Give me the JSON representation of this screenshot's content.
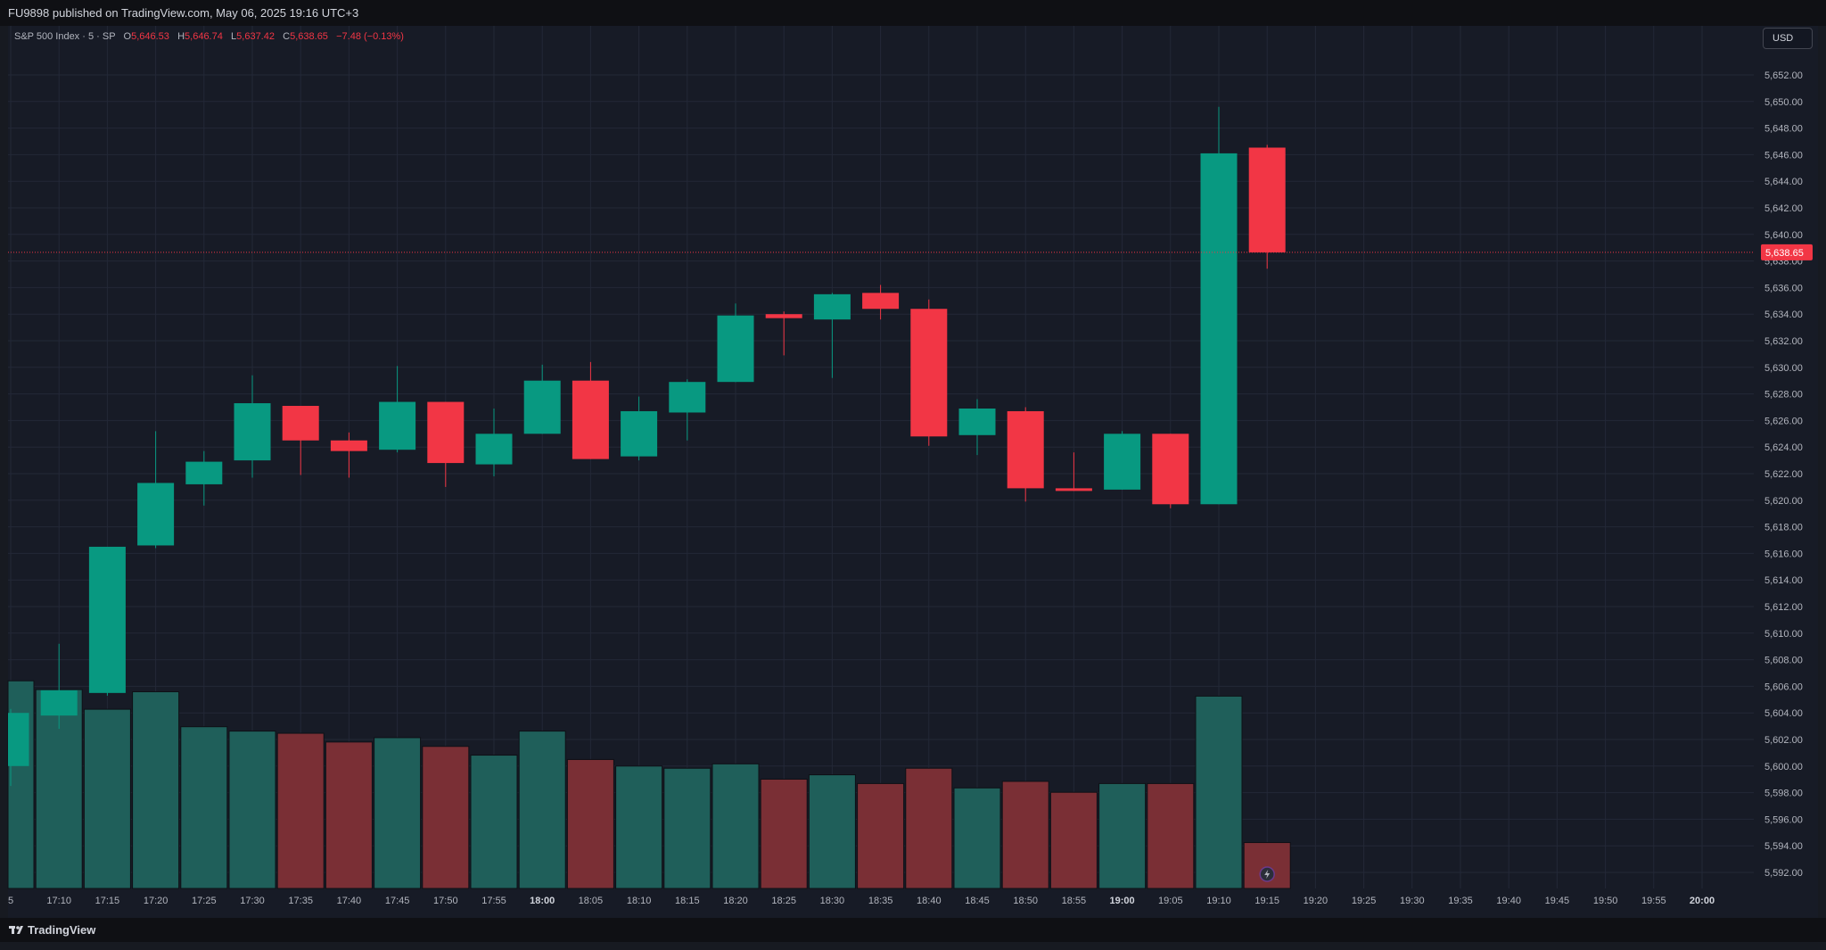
{
  "header": {
    "published": "FU9898 published on TradingView.com, May 06, 2025 19:16 UTC+3"
  },
  "legend": {
    "symbol": "S&P 500 Index · 5 · SP",
    "o_label": "O",
    "o_value": "5,646.53",
    "h_label": "H",
    "h_value": "5,646.74",
    "l_label": "L",
    "l_value": "5,637.42",
    "c_label": "C",
    "c_value": "5,638.65",
    "change": "−7.48 (−0.13%)"
  },
  "currency_button": "USD",
  "footer": {
    "brand": "TradingView"
  },
  "colors": {
    "up": "#089981",
    "down": "#f23645",
    "vol_up": "#1f5f5a",
    "vol_down": "#7a2f35",
    "grid": "#232837",
    "last_price": "#f23645"
  },
  "icons": {
    "logo": "tradingview-logo-icon",
    "replay": "lightning-icon"
  },
  "chart_data": {
    "type": "candlestick",
    "symbol": "S&P 500 Index",
    "interval": "5",
    "currency": "USD",
    "last_price": 5638.65,
    "last_price_label": "5,638.65",
    "ylim": [
      5591,
      5653.5
    ],
    "y_ticks": [
      "5,592.00",
      "5,594.00",
      "5,596.00",
      "5,598.00",
      "5,600.00",
      "5,602.00",
      "5,604.00",
      "5,606.00",
      "5,608.00",
      "5,610.00",
      "5,612.00",
      "5,614.00",
      "5,616.00",
      "5,618.00",
      "5,620.00",
      "5,622.00",
      "5,624.00",
      "5,626.00",
      "5,628.00",
      "5,630.00",
      "5,632.00",
      "5,634.00",
      "5,636.00",
      "5,638.00",
      "5,640.00",
      "5,642.00",
      "5,644.00",
      "5,646.00",
      "5,648.00",
      "5,650.00",
      "5,652.00"
    ],
    "x_ticks": [
      "5",
      "17:10",
      "17:15",
      "17:20",
      "17:25",
      "17:30",
      "17:35",
      "17:40",
      "17:45",
      "17:50",
      "17:55",
      "18:00",
      "18:05",
      "18:10",
      "18:15",
      "18:20",
      "18:25",
      "18:30",
      "18:35",
      "18:40",
      "18:45",
      "18:50",
      "18:55",
      "19:00",
      "19:05",
      "19:10",
      "19:15",
      "19:20",
      "19:25",
      "19:30",
      "19:35",
      "19:40",
      "19:45",
      "19:50",
      "19:55",
      "20:00"
    ],
    "x_ticks_bold": [
      "18:00",
      "19:00",
      "20:00"
    ],
    "candles": [
      {
        "time": "17:05",
        "open": 5600.0,
        "high": 5604.3,
        "low": 5598.5,
        "close": 5604.0
      },
      {
        "time": "17:10",
        "open": 5603.8,
        "high": 5609.2,
        "low": 5602.8,
        "close": 5605.7
      },
      {
        "time": "17:15",
        "open": 5605.5,
        "high": 5616.5,
        "low": 5605.3,
        "close": 5616.5
      },
      {
        "time": "17:20",
        "open": 5616.6,
        "high": 5625.2,
        "low": 5616.4,
        "close": 5621.3
      },
      {
        "time": "17:25",
        "open": 5621.2,
        "high": 5623.7,
        "low": 5619.6,
        "close": 5622.9
      },
      {
        "time": "17:30",
        "open": 5623.0,
        "high": 5629.4,
        "low": 5621.7,
        "close": 5627.3
      },
      {
        "time": "17:35",
        "open": 5627.1,
        "high": 5627.1,
        "low": 5621.9,
        "close": 5624.5
      },
      {
        "time": "17:40",
        "open": 5624.5,
        "high": 5625.1,
        "low": 5621.7,
        "close": 5623.7
      },
      {
        "time": "17:45",
        "open": 5623.8,
        "high": 5630.1,
        "low": 5623.6,
        "close": 5627.4
      },
      {
        "time": "17:50",
        "open": 5627.4,
        "high": 5627.4,
        "low": 5621.0,
        "close": 5622.8
      },
      {
        "time": "17:55",
        "open": 5622.7,
        "high": 5626.9,
        "low": 5621.8,
        "close": 5625.0
      },
      {
        "time": "18:00",
        "open": 5625.0,
        "high": 5630.2,
        "low": 5625.0,
        "close": 5629.0
      },
      {
        "time": "18:05",
        "open": 5629.0,
        "high": 5630.4,
        "low": 5623.1,
        "close": 5623.1
      },
      {
        "time": "18:10",
        "open": 5623.3,
        "high": 5627.8,
        "low": 5623.0,
        "close": 5626.7
      },
      {
        "time": "18:15",
        "open": 5626.6,
        "high": 5629.1,
        "low": 5624.5,
        "close": 5628.9
      },
      {
        "time": "18:20",
        "open": 5628.9,
        "high": 5634.8,
        "low": 5628.9,
        "close": 5633.9
      },
      {
        "time": "18:25",
        "open": 5634.0,
        "high": 5634.2,
        "low": 5630.9,
        "close": 5633.7
      },
      {
        "time": "18:30",
        "open": 5633.6,
        "high": 5635.6,
        "low": 5629.2,
        "close": 5635.5
      },
      {
        "time": "18:35",
        "open": 5635.6,
        "high": 5636.2,
        "low": 5633.6,
        "close": 5634.4
      },
      {
        "time": "18:40",
        "open": 5634.4,
        "high": 5635.1,
        "low": 5624.1,
        "close": 5624.8
      },
      {
        "time": "18:45",
        "open": 5624.9,
        "high": 5627.6,
        "low": 5623.4,
        "close": 5626.9
      },
      {
        "time": "18:50",
        "open": 5626.7,
        "high": 5627.0,
        "low": 5619.9,
        "close": 5620.9
      },
      {
        "time": "18:55",
        "open": 5620.9,
        "high": 5623.6,
        "low": 5620.7,
        "close": 5620.7
      },
      {
        "time": "19:00",
        "open": 5620.8,
        "high": 5625.2,
        "low": 5620.8,
        "close": 5625.0
      },
      {
        "time": "19:05",
        "open": 5625.0,
        "high": 5625.0,
        "low": 5619.4,
        "close": 5619.7
      },
      {
        "time": "19:10",
        "open": 5619.7,
        "high": 5649.6,
        "low": 5619.7,
        "close": 5646.1
      },
      {
        "time": "19:15",
        "open": 5646.53,
        "high": 5646.74,
        "low": 5637.42,
        "close": 5638.65
      }
    ],
    "volume": [
      {
        "time": "17:05",
        "value": 0.95,
        "up": true
      },
      {
        "time": "17:10",
        "value": 0.91,
        "up": true
      },
      {
        "time": "17:15",
        "value": 0.82,
        "up": true
      },
      {
        "time": "17:20",
        "value": 0.9,
        "up": true
      },
      {
        "time": "17:25",
        "value": 0.74,
        "up": true
      },
      {
        "time": "17:30",
        "value": 0.72,
        "up": true
      },
      {
        "time": "17:35",
        "value": 0.71,
        "up": false
      },
      {
        "time": "17:40",
        "value": 0.67,
        "up": false
      },
      {
        "time": "17:45",
        "value": 0.69,
        "up": true
      },
      {
        "time": "17:50",
        "value": 0.65,
        "up": false
      },
      {
        "time": "17:55",
        "value": 0.61,
        "up": true
      },
      {
        "time": "18:00",
        "value": 0.72,
        "up": true
      },
      {
        "time": "18:05",
        "value": 0.59,
        "up": false
      },
      {
        "time": "18:10",
        "value": 0.56,
        "up": true
      },
      {
        "time": "18:15",
        "value": 0.55,
        "up": true
      },
      {
        "time": "18:20",
        "value": 0.57,
        "up": true
      },
      {
        "time": "18:25",
        "value": 0.5,
        "up": false
      },
      {
        "time": "18:30",
        "value": 0.52,
        "up": true
      },
      {
        "time": "18:35",
        "value": 0.48,
        "up": false
      },
      {
        "time": "18:40",
        "value": 0.55,
        "up": false
      },
      {
        "time": "18:45",
        "value": 0.46,
        "up": true
      },
      {
        "time": "18:50",
        "value": 0.49,
        "up": false
      },
      {
        "time": "18:55",
        "value": 0.44,
        "up": false
      },
      {
        "time": "19:00",
        "value": 0.48,
        "up": true
      },
      {
        "time": "19:05",
        "value": 0.48,
        "up": false
      },
      {
        "time": "19:10",
        "value": 0.88,
        "up": true
      },
      {
        "time": "19:15",
        "value": 0.21,
        "up": false
      }
    ],
    "grid": true
  }
}
